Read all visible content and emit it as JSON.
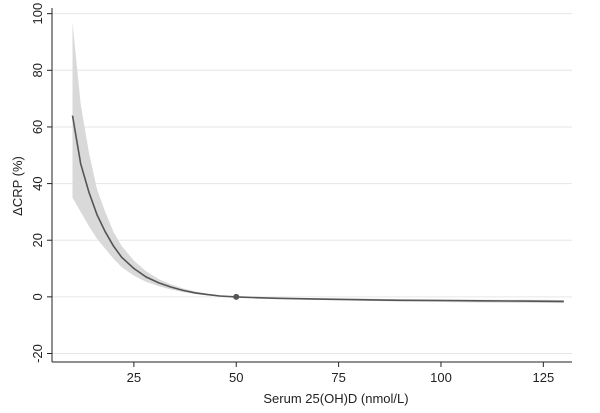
{
  "chart_data": {
    "type": "line",
    "xlabel": "Serum 25(OH)D (nmol/L)",
    "ylabel": "ΔCRP (%)",
    "xlim": [
      5,
      132
    ],
    "ylim": [
      -23,
      102
    ],
    "xticks": [
      25,
      50,
      75,
      100,
      125
    ],
    "yticks": [
      -20,
      0,
      20,
      40,
      60,
      80,
      100
    ],
    "grid": "horizontal",
    "colors": {
      "line": "#555555",
      "band": "#d9d9d9",
      "reference_point": "#555555"
    },
    "series": [
      {
        "x": [
          10,
          12,
          14,
          16,
          18,
          20,
          22,
          25,
          28,
          31,
          34,
          37,
          40,
          43,
          46,
          50,
          55,
          60,
          70,
          80,
          90,
          100,
          110,
          120,
          130
        ],
        "y": [
          64,
          47,
          37,
          29,
          23,
          18,
          14,
          10,
          7,
          5,
          3.5,
          2.3,
          1.4,
          0.8,
          0.3,
          0,
          -0.3,
          -0.5,
          -0.8,
          -1.0,
          -1.2,
          -1.3,
          -1.4,
          -1.5,
          -1.6
        ],
        "lower": [
          35,
          30,
          25,
          20.5,
          17,
          13.5,
          10.5,
          7.5,
          5.3,
          3.8,
          2.6,
          1.7,
          1.0,
          0.5,
          0.2,
          0,
          -0.4,
          -0.7,
          -1.1,
          -1.4,
          -1.6,
          -1.8,
          -2.0,
          -2.1,
          -2.2
        ],
        "upper": [
          97,
          68,
          51,
          38,
          30,
          23,
          18,
          12.8,
          9,
          6.3,
          4.4,
          3.0,
          1.9,
          1.1,
          0.5,
          0,
          -0.2,
          -0.3,
          -0.5,
          -0.6,
          -0.8,
          -0.9,
          -1.0,
          -1.0,
          -1.1
        ]
      }
    ],
    "reference_point": {
      "x": 50,
      "y": 0
    }
  }
}
